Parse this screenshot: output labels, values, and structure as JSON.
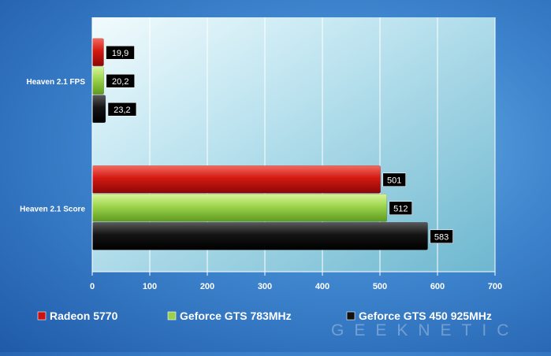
{
  "chart_data": {
    "type": "bar",
    "orientation": "horizontal",
    "categories": [
      "Heaven 2.1 FPS",
      "Heaven 2.1 Score"
    ],
    "series": [
      {
        "name": "Radeon 5770",
        "color": "#cc1111",
        "values": [
          19.9,
          501
        ],
        "labels": [
          "19,9",
          "501"
        ]
      },
      {
        "name": "Geforce GTS 783MHz",
        "color": "#99d24a",
        "values": [
          20.2,
          512
        ],
        "labels": [
          "20,2",
          "512"
        ]
      },
      {
        "name": "Geforce GTS 450 925MHz",
        "color": "#111111",
        "values": [
          23.2,
          583
        ],
        "labels": [
          "23,2",
          "583"
        ]
      }
    ],
    "x_ticks": [
      "0",
      "100",
      "200",
      "300",
      "400",
      "500",
      "600",
      "700"
    ],
    "xlim": [
      0,
      700
    ],
    "grid": true,
    "legend_position": "bottom",
    "plot_background": "#9fd4e8"
  },
  "watermark": "GEEKNETIC"
}
